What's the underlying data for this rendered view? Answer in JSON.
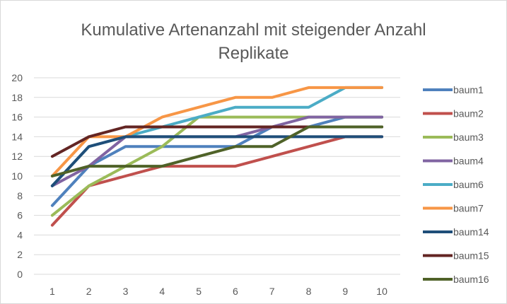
{
  "chart_data": {
    "type": "line",
    "title_lines": [
      "Kumulative Artenanzahl mit steigender Anzahl",
      "Replikate"
    ],
    "xlabel": "",
    "ylabel": "",
    "x": [
      1,
      2,
      3,
      4,
      5,
      6,
      7,
      8,
      9,
      10
    ],
    "ylim": [
      0,
      20
    ],
    "yticks": [
      0,
      2,
      4,
      6,
      8,
      10,
      12,
      14,
      16,
      18,
      20
    ],
    "grid": true,
    "legend": "right",
    "series": [
      {
        "name": "baum1",
        "color": "#4f81bd",
        "values": [
          7,
          11,
          13,
          13,
          13,
          13,
          15,
          15,
          16,
          16
        ]
      },
      {
        "name": "baum2",
        "color": "#c0504d",
        "values": [
          5,
          9,
          10,
          11,
          11,
          11,
          12,
          13,
          14,
          14
        ]
      },
      {
        "name": "baum3",
        "color": "#9bbb59",
        "values": [
          6,
          9,
          11,
          13,
          16,
          16,
          16,
          16,
          16,
          16
        ]
      },
      {
        "name": "baum4",
        "color": "#8064a2",
        "values": [
          9,
          11,
          14,
          14,
          14,
          14,
          15,
          16,
          16,
          16
        ]
      },
      {
        "name": "baum6",
        "color": "#4bacc6",
        "values": [
          9,
          13,
          14,
          15,
          16,
          17,
          17,
          17,
          19,
          19
        ]
      },
      {
        "name": "baum7",
        "color": "#f79646",
        "values": [
          10,
          14,
          14,
          16,
          17,
          18,
          18,
          19,
          19,
          19
        ]
      },
      {
        "name": "baum14",
        "color": "#1f4e79",
        "values": [
          9,
          13,
          14,
          14,
          14,
          14,
          14,
          14,
          14,
          14
        ]
      },
      {
        "name": "baum15",
        "color": "#632523",
        "values": [
          12,
          14,
          15,
          15,
          15,
          15,
          15,
          15,
          15,
          15
        ]
      },
      {
        "name": "baum16",
        "color": "#4f6228",
        "values": [
          10,
          11,
          11,
          11,
          12,
          13,
          13,
          15,
          15,
          15
        ]
      }
    ]
  }
}
